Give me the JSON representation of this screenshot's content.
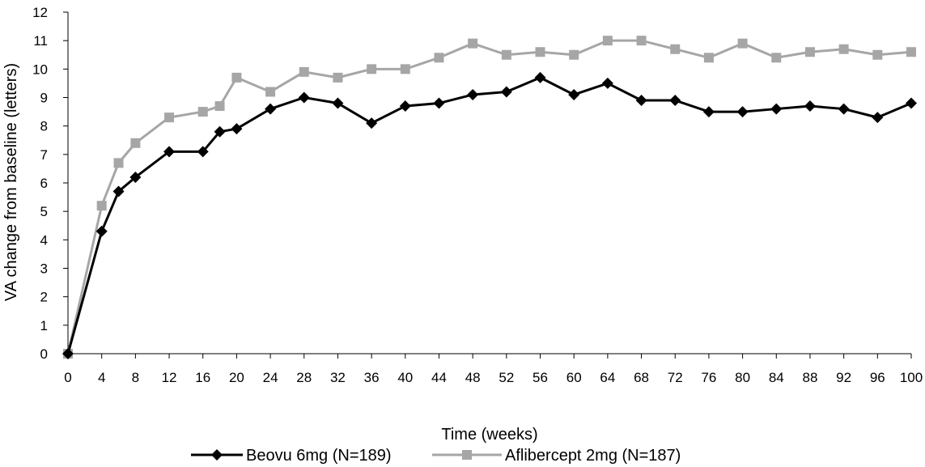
{
  "chart_data": {
    "type": "line",
    "title": "",
    "xlabel": "Time (weeks)",
    "ylabel": "VA change from baseline (letters)",
    "xlim": [
      0,
      100
    ],
    "ylim": [
      0,
      12
    ],
    "x_ticks": [
      0,
      4,
      8,
      12,
      16,
      20,
      24,
      28,
      32,
      36,
      40,
      44,
      48,
      52,
      56,
      60,
      64,
      68,
      72,
      76,
      80,
      84,
      88,
      92,
      96,
      100
    ],
    "y_ticks": [
      0,
      1,
      2,
      3,
      4,
      5,
      6,
      7,
      8,
      9,
      10,
      11,
      12
    ],
    "grid": false,
    "legend_position": "bottom",
    "series": [
      {
        "name": "Beovu 6mg (N=189)",
        "color": "#000000",
        "marker": "diamond",
        "x": [
          0,
          4,
          6,
          8,
          12,
          16,
          18,
          20,
          24,
          28,
          32,
          36,
          40,
          44,
          48,
          52,
          56,
          60,
          64,
          68,
          72,
          76,
          80,
          84,
          88,
          92,
          96,
          100
        ],
        "y": [
          0,
          4.3,
          5.7,
          6.2,
          7.1,
          7.1,
          7.8,
          7.9,
          8.6,
          9.0,
          8.8,
          8.1,
          8.7,
          8.8,
          9.1,
          9.2,
          9.7,
          9.1,
          9.5,
          8.9,
          8.9,
          8.5,
          8.5,
          8.6,
          8.7,
          8.6,
          8.3,
          8.8
        ]
      },
      {
        "name": "Aflibercept 2mg (N=187)",
        "color": "#a6a6a6",
        "marker": "square",
        "x": [
          0,
          4,
          6,
          8,
          12,
          16,
          18,
          20,
          24,
          28,
          32,
          36,
          40,
          44,
          48,
          52,
          56,
          60,
          64,
          68,
          72,
          76,
          80,
          84,
          88,
          92,
          96,
          100
        ],
        "y": [
          0,
          5.2,
          6.7,
          7.4,
          8.3,
          8.5,
          8.7,
          9.7,
          9.2,
          9.9,
          9.7,
          10.0,
          10.0,
          10.4,
          10.9,
          10.5,
          10.6,
          10.5,
          11.0,
          11.0,
          10.7,
          10.4,
          10.9,
          10.4,
          10.6,
          10.7,
          10.5,
          10.6
        ]
      }
    ]
  }
}
